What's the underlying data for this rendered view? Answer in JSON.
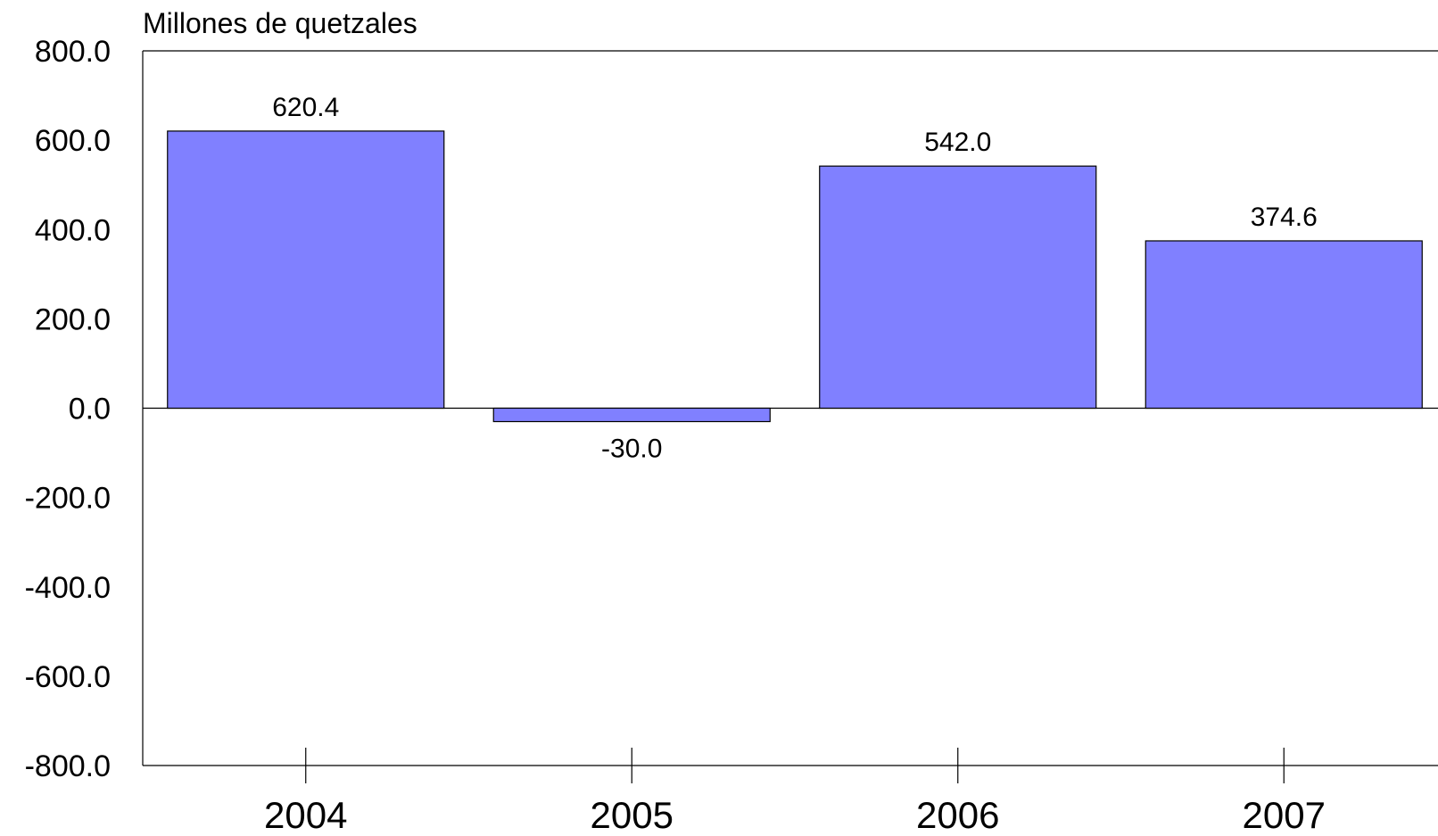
{
  "chart_data": {
    "type": "bar",
    "title": "",
    "ylabel": "Millones de quetzales",
    "xlabel": "",
    "categories": [
      "2004",
      "2005",
      "2006",
      "2007"
    ],
    "values": [
      620.4,
      -30.0,
      542.0,
      374.6
    ],
    "value_labels": [
      "620.4",
      "-30.0",
      "542.0",
      "374.6"
    ],
    "ylim": [
      -800,
      800
    ],
    "yticks": [
      800,
      600,
      400,
      200,
      0,
      -200,
      -400,
      -600,
      -800
    ],
    "ytick_labels": [
      "800.0",
      "600.0",
      "400.0",
      "200.0",
      "0.0",
      "-200.0",
      "-400.0",
      "-600.0",
      "-800.0"
    ],
    "grid": false,
    "legend": "none",
    "colors": {
      "bar_fill": "#8080ff",
      "bar_stroke": "#000000",
      "axis": "#000000",
      "text": "#000000"
    }
  }
}
